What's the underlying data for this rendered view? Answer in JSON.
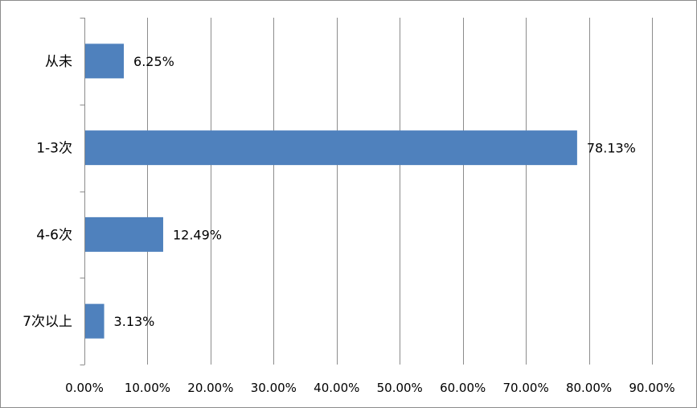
{
  "chart_data": {
    "type": "bar",
    "orientation": "horizontal",
    "categories": [
      "从未",
      "1-3次",
      "4-6次",
      "7次以上"
    ],
    "values": [
      6.25,
      78.13,
      12.49,
      3.13
    ],
    "data_labels": [
      "6.25%",
      "78.13%",
      "12.49%",
      "3.13%"
    ],
    "x_ticks": [
      "0.00%",
      "10.00%",
      "20.00%",
      "30.00%",
      "40.00%",
      "50.00%",
      "60.00%",
      "70.00%",
      "80.00%",
      "90.00%"
    ],
    "xlim": [
      0,
      90
    ],
    "title": "",
    "xlabel": "",
    "ylabel": "",
    "grid": "vertical",
    "legend": "none",
    "bar_color": "#4f81bd",
    "grid_color": "#8c8c8c"
  }
}
